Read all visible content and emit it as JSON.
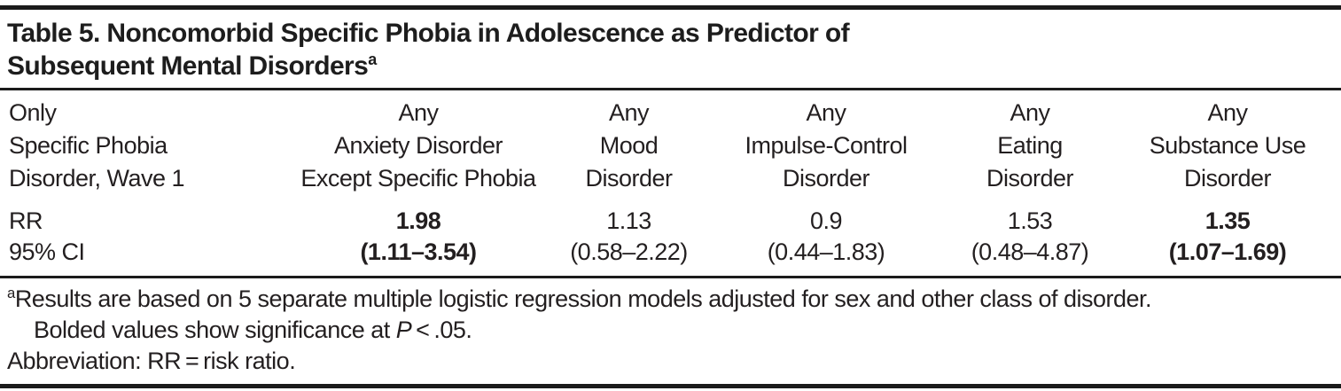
{
  "title": {
    "line1": "Table 5. Noncomorbid Specific Phobia in Adolescence as Predictor of",
    "line2": "Subsequent Mental Disorders",
    "superscript": "a"
  },
  "table": {
    "stub": {
      "lines": [
        "Only",
        "Specific Phobia",
        "Disorder, Wave 1"
      ]
    },
    "row_labels": {
      "rr": "RR",
      "ci": "95% CI"
    },
    "columns": [
      {
        "lines": [
          "Any",
          "Anxiety Disorder",
          "Except Specific Phobia"
        ],
        "rr": "1.98",
        "ci": "(1.11–3.54)",
        "bold": true
      },
      {
        "lines": [
          "Any",
          "Mood",
          "Disorder"
        ],
        "rr": "1.13",
        "ci": "(0.58–2.22)",
        "bold": false
      },
      {
        "lines": [
          "Any",
          "Impulse-Control",
          "Disorder"
        ],
        "rr": "0.9",
        "ci": "(0.44–1.83)",
        "bold": false
      },
      {
        "lines": [
          "Any",
          "Eating",
          "Disorder"
        ],
        "rr": "1.53",
        "ci": "(0.48–4.87)",
        "bold": false
      },
      {
        "lines": [
          "Any",
          "Substance Use",
          "Disorder"
        ],
        "rr": "1.35",
        "ci": "(1.07–1.69)",
        "bold": true
      }
    ]
  },
  "footnotes": {
    "marker": "a",
    "fn1": "Results are based on 5 separate multiple logistic regression models adjusted for sex and other class of disorder.",
    "fn2_pre": "Bolded values show significance at ",
    "fn2_italic": "P",
    "fn2_post": " < .05.",
    "fn3": "Abbreviation: RR = risk ratio."
  },
  "colors": {
    "text": "#231f20",
    "rules": "#1b1b1b",
    "background": "#ffffff"
  },
  "chart_data": {
    "type": "table",
    "title": "Table 5. Noncomorbid Specific Phobia in Adolescence as Predictor of Subsequent Mental Disorders",
    "stub_header": "Only Specific Phobia Disorder, Wave 1",
    "categories": [
      "Any Anxiety Disorder Except Specific Phobia",
      "Any Mood Disorder",
      "Any Impulse-Control Disorder",
      "Any Eating Disorder",
      "Any Substance Use Disorder"
    ],
    "series": [
      {
        "name": "RR",
        "values": [
          1.98,
          1.13,
          0.9,
          1.53,
          1.35
        ]
      },
      {
        "name": "95% CI",
        "values": [
          "(1.11–3.54)",
          "(0.58–2.22)",
          "(0.44–1.83)",
          "(0.48–4.87)",
          "(1.07–1.69)"
        ]
      }
    ],
    "significant_bold_columns": [
      0,
      4
    ],
    "layout_hints": {
      "grid": "horizontal rules only",
      "bold_means": "significance at P < .05"
    }
  }
}
